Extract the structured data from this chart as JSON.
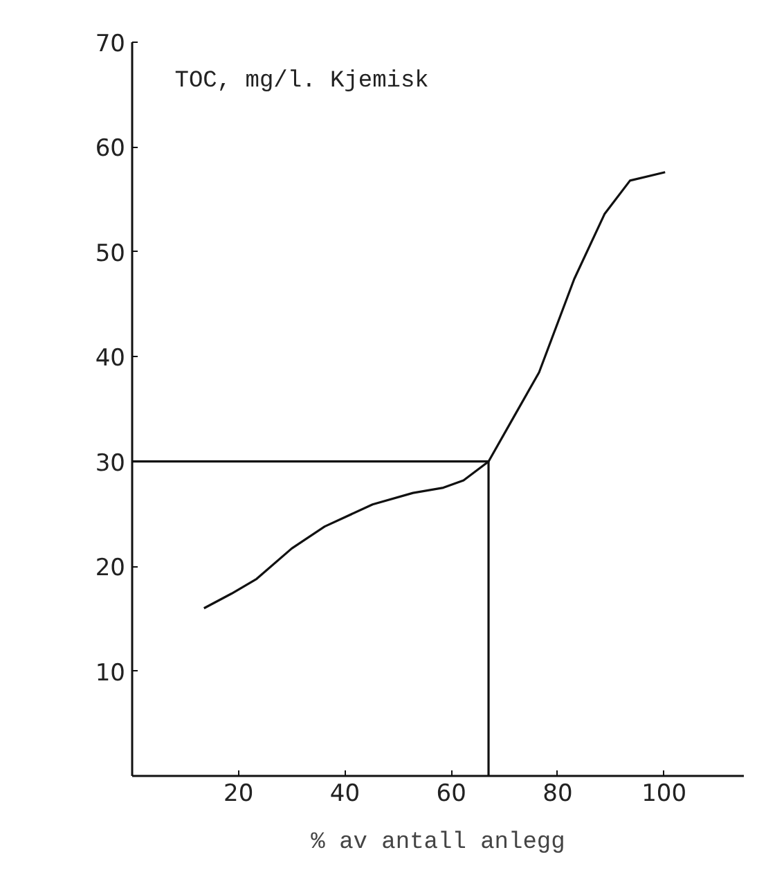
{
  "chart_data": {
    "type": "line",
    "ylabel": "TOC, mg/l.  Kjemisk",
    "xlabel": "% av antall anlegg",
    "xlim": [
      0,
      115
    ],
    "ylim": [
      0,
      70
    ],
    "xticks": [
      20,
      40,
      60,
      80,
      100
    ],
    "yticks": [
      10,
      20,
      30,
      40,
      50,
      60,
      70
    ],
    "grid": false,
    "series": [
      {
        "color": "#111111",
        "x": [
          13.5,
          18.7,
          23.4,
          30,
          36.2,
          45.2,
          52.8,
          58.5,
          62.3,
          67,
          71.8,
          76.5,
          83.1,
          88.8,
          93.6,
          100.2
        ],
        "values": [
          16.0,
          17.4,
          18.8,
          21.7,
          23.8,
          25.9,
          27.0,
          27.5,
          28.2,
          30,
          34.3,
          38.5,
          47.4,
          53.6,
          56.8,
          57.6
        ]
      },
      {
        "color": "#111111",
        "x": [
          0,
          67,
          67
        ],
        "values": [
          30,
          30,
          0
        ]
      }
    ]
  }
}
